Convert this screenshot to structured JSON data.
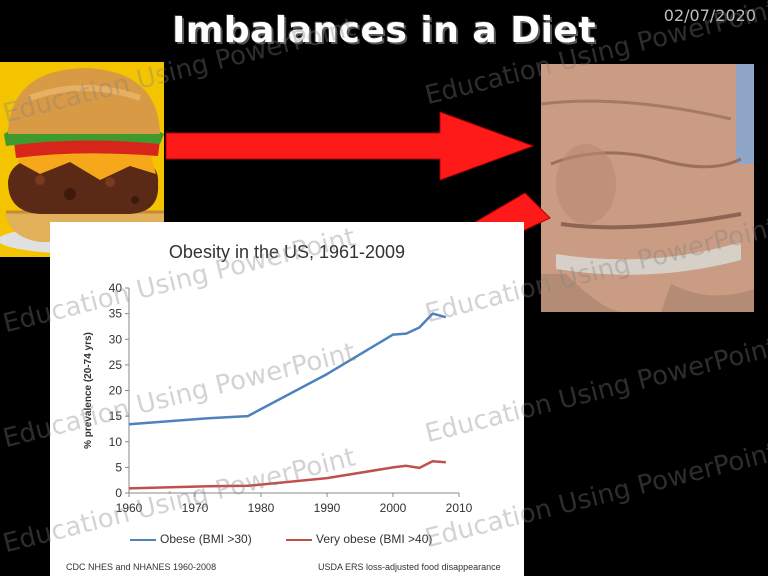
{
  "slide": {
    "title": "Imbalances in a Diet",
    "date": "02/07/2020",
    "watermark": "Education Using PowerPoint"
  },
  "images": {
    "burger": "hamburger",
    "belly": "obese-abdomen"
  },
  "colors": {
    "background": "#000000",
    "arrow": "#ff1a1a",
    "burger_bg": "#f5c400",
    "obese_line": "#4f81bd",
    "very_obese_line": "#c0504d"
  },
  "chart": {
    "source_left": "CDC NHES and NHANES 1960-2008",
    "source_right": "USDA ERS loss-adjusted food disappearance"
  },
  "chart_data": {
    "type": "line",
    "title": "Obesity in the US, 1961-2009",
    "xlabel": "",
    "ylabel": "% prevalence (20-74 yrs)",
    "xlim": [
      1960,
      2010
    ],
    "ylim": [
      0,
      40
    ],
    "x_ticks": [
      "1960",
      "1970",
      "1980",
      "1990",
      "2000",
      "2010"
    ],
    "y_ticks": [
      "0",
      "5",
      "10",
      "15",
      "20",
      "25",
      "30",
      "35",
      "40"
    ],
    "grid": false,
    "legend": "bottom",
    "series": [
      {
        "name": "Obese (BMI >30)",
        "color": "#4f81bd",
        "x": [
          1960,
          1972,
          1978,
          1990,
          2000,
          2002,
          2004,
          2006,
          2008
        ],
        "y": [
          13.4,
          14.6,
          15.0,
          23.2,
          30.9,
          31.1,
          32.3,
          35.0,
          34.3
        ]
      },
      {
        "name": "Very obese (BMI >40)",
        "color": "#c0504d",
        "x": [
          1960,
          1972,
          1978,
          1990,
          2000,
          2002,
          2004,
          2006,
          2008
        ],
        "y": [
          0.9,
          1.3,
          1.4,
          2.9,
          5.0,
          5.3,
          4.9,
          6.2,
          6.0
        ]
      }
    ]
  }
}
